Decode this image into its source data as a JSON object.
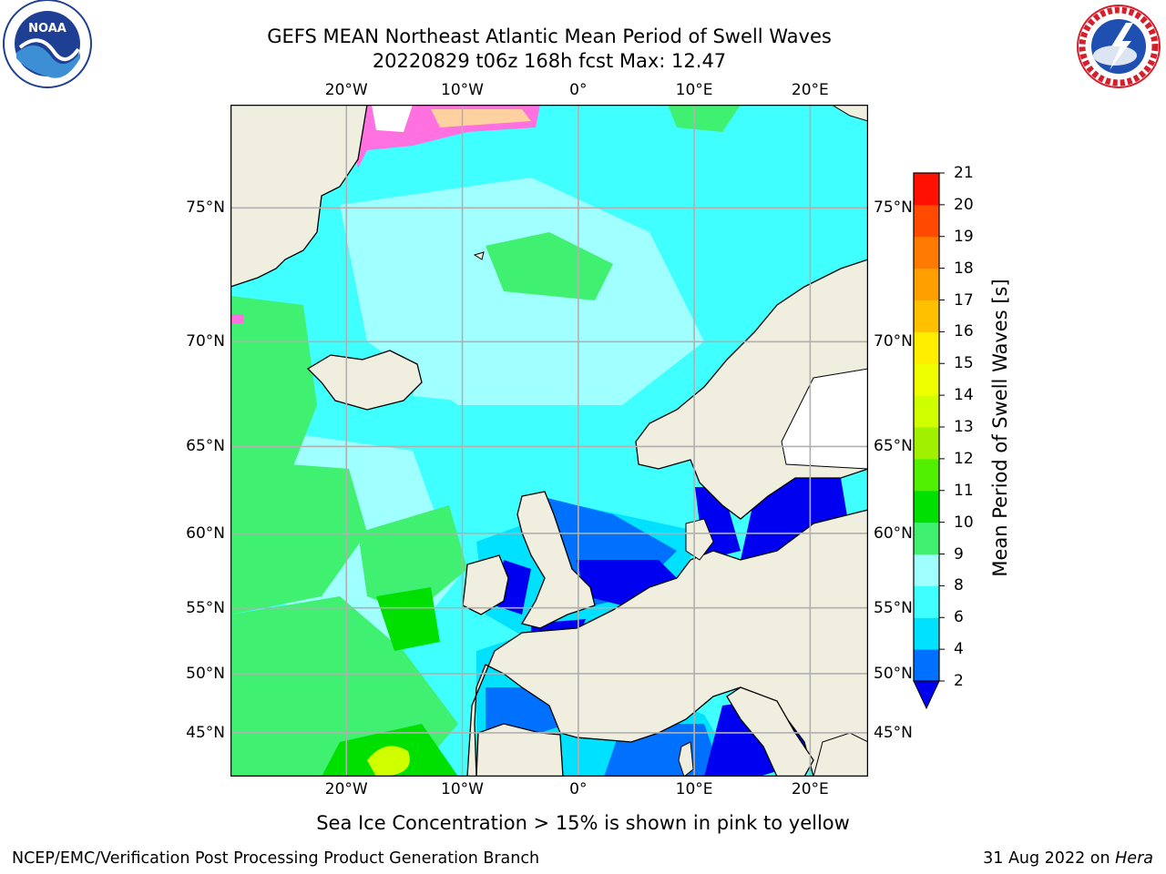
{
  "header": {
    "title_line1": "GEFS MEAN Northeast Atlantic Mean Period of Swell Waves",
    "title_line2": "20220829 t06z 168h fcst   Max: 12.47"
  },
  "logos": {
    "left": {
      "name": "NOAA",
      "ring_text": "NATIONAL OCEANIC AND ATMOSPHERIC ADMINISTRATION · U.S. DEPARTMENT OF COMMERCE",
      "colors": [
        "#1f3f95",
        "#3c8fd4",
        "#ffffff"
      ]
    },
    "right": {
      "name": "NATIONAL WEATHER SERVICE",
      "colors": [
        "#d4202c",
        "#1f4fb0",
        "#ffffff"
      ]
    }
  },
  "map": {
    "projection": "lat-lon",
    "lon_range": [
      -30,
      25
    ],
    "lat_range": [
      41,
      78
    ],
    "lon_ticks": [
      {
        "value": -20,
        "label": "20°W"
      },
      {
        "value": -10,
        "label": "10°W"
      },
      {
        "value": 0,
        "label": "0°"
      },
      {
        "value": 10,
        "label": "10°E"
      },
      {
        "value": 20,
        "label": "20°E"
      }
    ],
    "lat_ticks": [
      {
        "value": 75,
        "label": "75°N"
      },
      {
        "value": 70,
        "label": "70°N"
      },
      {
        "value": 65,
        "label": "65°N"
      },
      {
        "value": 60,
        "label": "60°N"
      },
      {
        "value": 55,
        "label": "55°N"
      },
      {
        "value": 50,
        "label": "50°N"
      },
      {
        "value": 45,
        "label": "45°N"
      }
    ],
    "gridlines": true,
    "land_color": "#efeedf",
    "gridline_color": "#b0b0b0"
  },
  "colorbar": {
    "label": "Mean Period of Swell Waves [s]",
    "levels": [
      "2",
      "4",
      "6",
      "8",
      "9",
      "10",
      "11",
      "12",
      "13",
      "14",
      "15",
      "16",
      "17",
      "18",
      "19",
      "20",
      "21"
    ],
    "colors": [
      "#0070ff",
      "#00e0ff",
      "#40ffff",
      "#a0ffff",
      "#40f070",
      "#00e000",
      "#50f000",
      "#a0f000",
      "#d0ff00",
      "#f0ff00",
      "#ffee00",
      "#ffc000",
      "#ffa000",
      "#ff7a00",
      "#ff4a00",
      "#ff1000"
    ],
    "under_color": "#0000f0",
    "extend": "min"
  },
  "footer": {
    "sea_ice_note": "Sea Ice Concentration > 15% is shown in pink to yellow",
    "credit": "NCEP/EMC/Verification Post Processing Product Generation Branch",
    "date_prefix": "31 Aug 2022 on ",
    "machine": "Hera"
  }
}
